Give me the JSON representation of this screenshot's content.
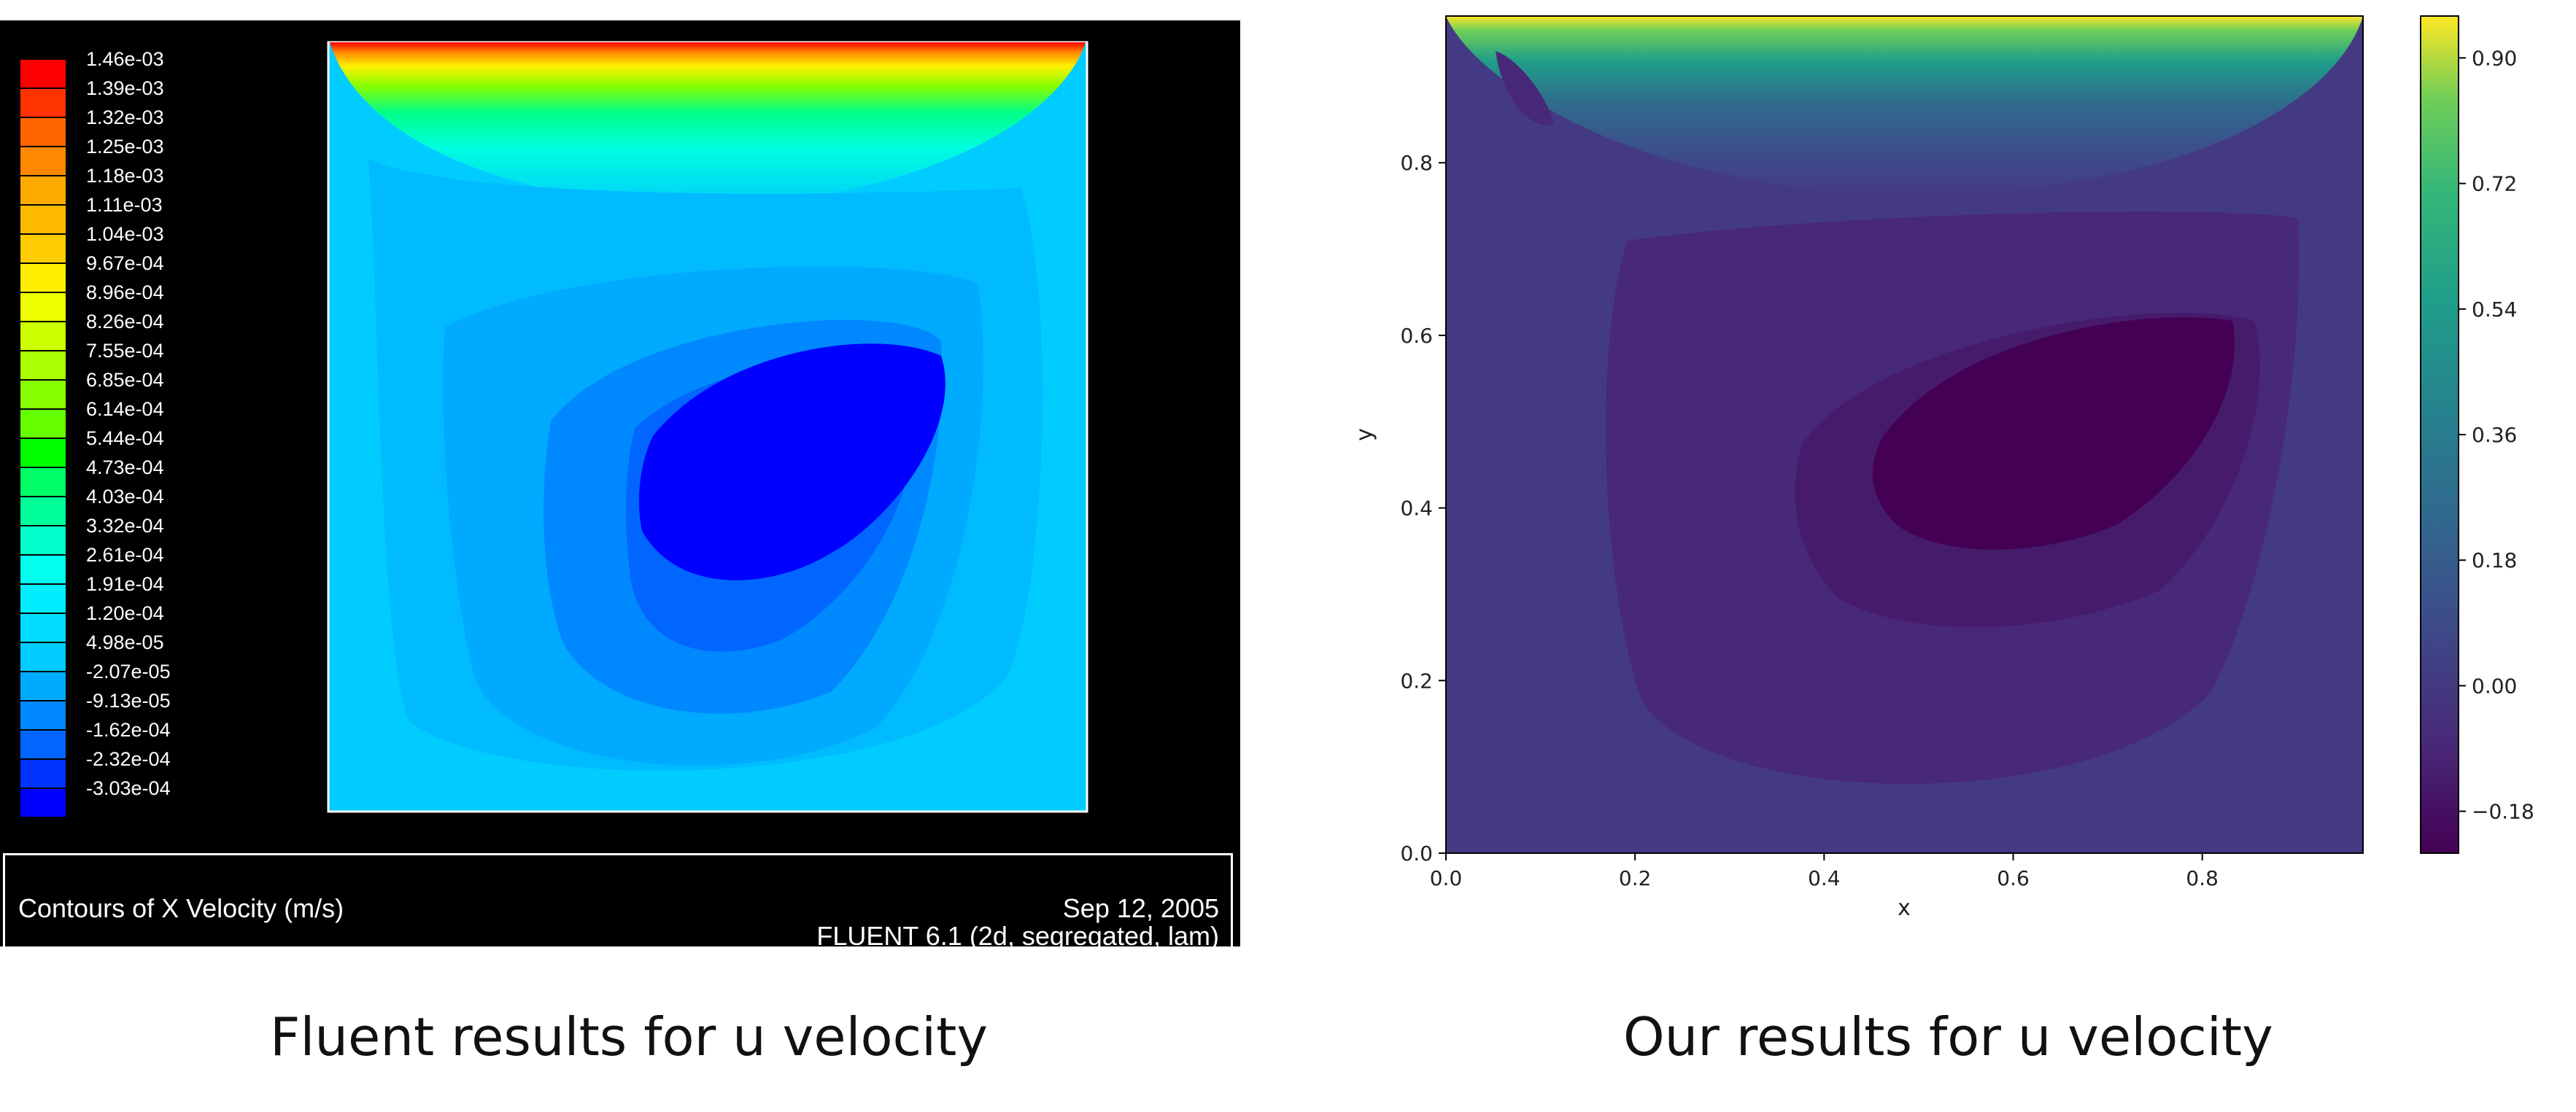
{
  "captions": {
    "left": "Fluent results for u velocity",
    "right": "Our results for u velocity"
  },
  "fluent_panel": {
    "footer_title": "Contours of X Velocity (m/s)",
    "footer_date": "Sep 12, 2005",
    "footer_software": "FLUENT 6.1 (2d, segregated, lam)"
  },
  "chart_data": [
    {
      "type": "heatmap",
      "title": "",
      "colorbar": {
        "tick_labels": [
          "1.46e-03",
          "1.39e-03",
          "1.32e-03",
          "1.25e-03",
          "1.18e-03",
          "1.11e-03",
          "1.04e-03",
          "9.67e-04",
          "8.96e-04",
          "8.26e-04",
          "7.55e-04",
          "6.85e-04",
          "6.14e-04",
          "5.44e-04",
          "4.73e-04",
          "4.03e-04",
          "3.32e-04",
          "2.61e-04",
          "1.91e-04",
          "1.20e-04",
          "4.98e-05",
          "-2.07e-05",
          "-9.13e-05",
          "-1.62e-04",
          "-2.32e-04",
          "-3.03e-04"
        ],
        "colors": [
          "#ff0000",
          "#ff3300",
          "#ff6600",
          "#ff8800",
          "#ffaa00",
          "#ffbb00",
          "#ffcc00",
          "#ffee00",
          "#eeff00",
          "#ccff00",
          "#aaff00",
          "#88ff00",
          "#66ff00",
          "#00ff00",
          "#00ff66",
          "#00ff99",
          "#00ffcc",
          "#00ffee",
          "#00eeff",
          "#00ddff",
          "#00ccff",
          "#00aaff",
          "#0088ff",
          "#0066ff",
          "#0033ff",
          "#0000ff"
        ],
        "min": -0.000303,
        "max": 0.00146,
        "units": "m/s"
      },
      "background_color": "#00c8ff"
    },
    {
      "type": "heatmap",
      "title": "",
      "xlabel": "x",
      "ylabel": "y",
      "xlim": [
        0.0,
        0.97
      ],
      "ylim": [
        0.0,
        0.97
      ],
      "x_ticks": [
        "0.0",
        "0.2",
        "0.4",
        "0.6",
        "0.8"
      ],
      "y_ticks": [
        "0.0",
        "0.2",
        "0.4",
        "0.6",
        "0.8"
      ],
      "colorbar": {
        "ticks": [
          "0.90",
          "0.72",
          "0.54",
          "0.36",
          "0.18",
          "0.00",
          "−0.18"
        ],
        "min": -0.24,
        "max": 0.96,
        "colormap": "viridis"
      },
      "background_color": "#443a83"
    }
  ]
}
